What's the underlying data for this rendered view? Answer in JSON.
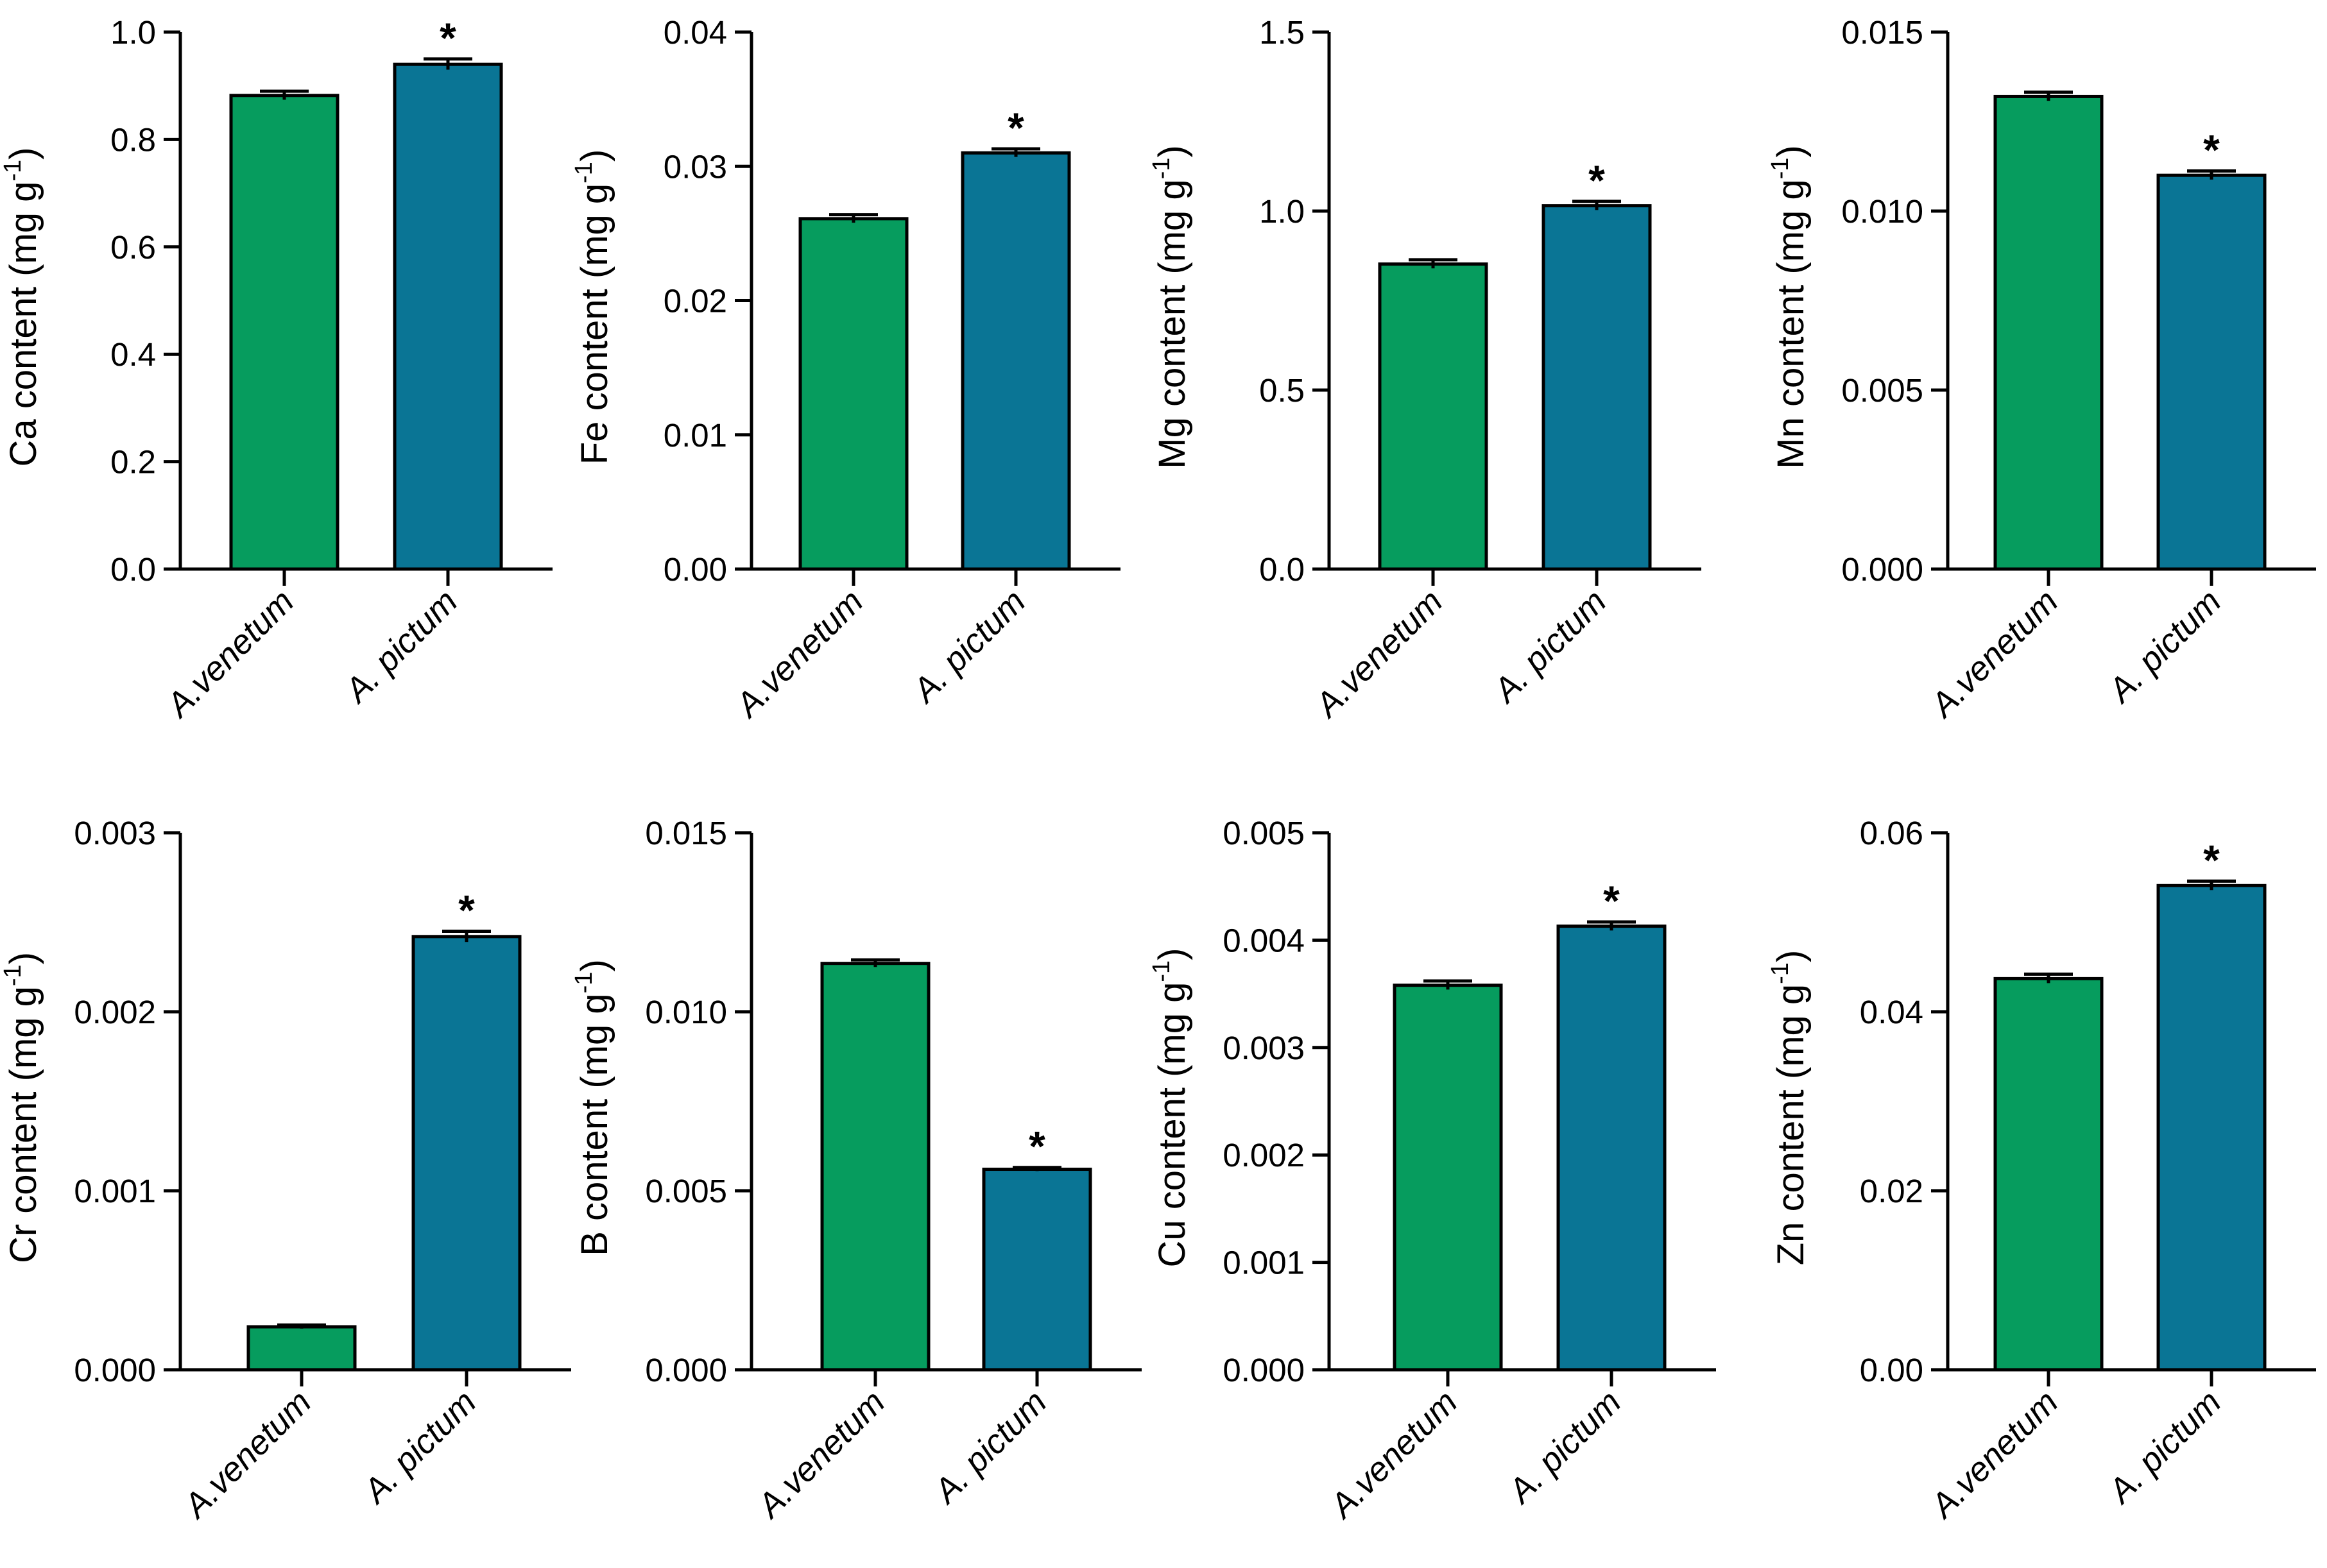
{
  "colors": {
    "venetum": "#069c5e",
    "pictum": "#0a7595",
    "axis": "#000000"
  },
  "chart_data": [
    {
      "type": "bar",
      "element": "Ca",
      "categories": [
        "A.venetum",
        "A. pictum"
      ],
      "values": [
        0.882,
        0.94
      ],
      "errors": [
        0.008,
        0.01
      ],
      "significance": [
        "",
        "*"
      ],
      "ylabel": "Ca content (mg g",
      "ylabel_sup": "-1",
      "ylabel_close": ")",
      "ylim": [
        0,
        1.0
      ],
      "ticks": [
        "0.0",
        "0.2",
        "0.4",
        "0.6",
        "0.8",
        "1.0"
      ]
    },
    {
      "type": "bar",
      "element": "Fe",
      "categories": [
        "A.venetum",
        "A. pictum"
      ],
      "values": [
        0.0261,
        0.031
      ],
      "errors": [
        0.0003,
        0.0003
      ],
      "significance": [
        "",
        "*"
      ],
      "ylabel": "Fe content (mg g",
      "ylabel_sup": "-1",
      "ylabel_close": ")",
      "ylim": [
        0,
        0.04
      ],
      "ticks": [
        "0.00",
        "0.01",
        "0.02",
        "0.03",
        "0.04"
      ]
    },
    {
      "type": "bar",
      "element": "Mg",
      "categories": [
        "A.venetum",
        "A. pictum"
      ],
      "values": [
        0.852,
        1.015
      ],
      "errors": [
        0.012,
        0.012
      ],
      "significance": [
        "",
        "*"
      ],
      "ylabel": "Mg content (mg g",
      "ylabel_sup": "-1",
      "ylabel_close": ")",
      "ylim": [
        0,
        1.5
      ],
      "ticks": [
        "0.0",
        "0.5",
        "1.0",
        "1.5"
      ]
    },
    {
      "type": "bar",
      "element": "Mn",
      "categories": [
        "A.venetum",
        "A. pictum"
      ],
      "values": [
        0.0132,
        0.011
      ],
      "errors": [
        0.00012,
        0.00012
      ],
      "significance": [
        "",
        "*"
      ],
      "ylabel": "Mn content (mg g",
      "ylabel_sup": "-1",
      "ylabel_close": ")",
      "ylim": [
        0,
        0.015
      ],
      "ticks": [
        "0.000",
        "0.005",
        "0.010",
        "0.015"
      ]
    },
    {
      "type": "bar",
      "element": "Cr",
      "categories": [
        "A.venetum",
        "A. pictum"
      ],
      "values": [
        0.00024,
        0.00242
      ],
      "errors": [
        1e-05,
        3e-05
      ],
      "significance": [
        "",
        "*"
      ],
      "ylabel": "Cr content (mg g",
      "ylabel_sup": "-1",
      "ylabel_close": ")",
      "ylim": [
        0,
        0.003
      ],
      "ticks": [
        "0.000",
        "0.001",
        "0.002",
        "0.003"
      ]
    },
    {
      "type": "bar",
      "element": "B",
      "categories": [
        "A.venetum",
        "A. pictum"
      ],
      "values": [
        0.01135,
        0.0056
      ],
      "errors": [
        0.0001,
        5e-05
      ],
      "significance": [
        "",
        "*"
      ],
      "ylabel": "B content (mg g",
      "ylabel_sup": "-1",
      "ylabel_close": ")",
      "ylim": [
        0,
        0.015
      ],
      "ticks": [
        "0.000",
        "0.005",
        "0.010",
        "0.015"
      ]
    },
    {
      "type": "bar",
      "element": "Cu",
      "categories": [
        "A.venetum",
        "A. pictum"
      ],
      "values": [
        0.00358,
        0.00413
      ],
      "errors": [
        4e-05,
        4e-05
      ],
      "significance": [
        "",
        "*"
      ],
      "ylabel": "Cu content (mg g",
      "ylabel_sup": "-1",
      "ylabel_close": ")",
      "ylim": [
        0,
        0.005
      ],
      "ticks": [
        "0.000",
        "0.001",
        "0.002",
        "0.003",
        "0.004",
        "0.005"
      ]
    },
    {
      "type": "bar",
      "element": "Zn",
      "categories": [
        "A.venetum",
        "A. pictum"
      ],
      "values": [
        0.0437,
        0.0541
      ],
      "errors": [
        0.0005,
        0.0005
      ],
      "significance": [
        "",
        "*"
      ],
      "ylabel": "Zn content (mg g",
      "ylabel_sup": "-1",
      "ylabel_close": ")",
      "ylim": [
        0,
        0.06
      ],
      "ticks": [
        "0.00",
        "0.02",
        "0.04",
        "0.06"
      ]
    }
  ]
}
